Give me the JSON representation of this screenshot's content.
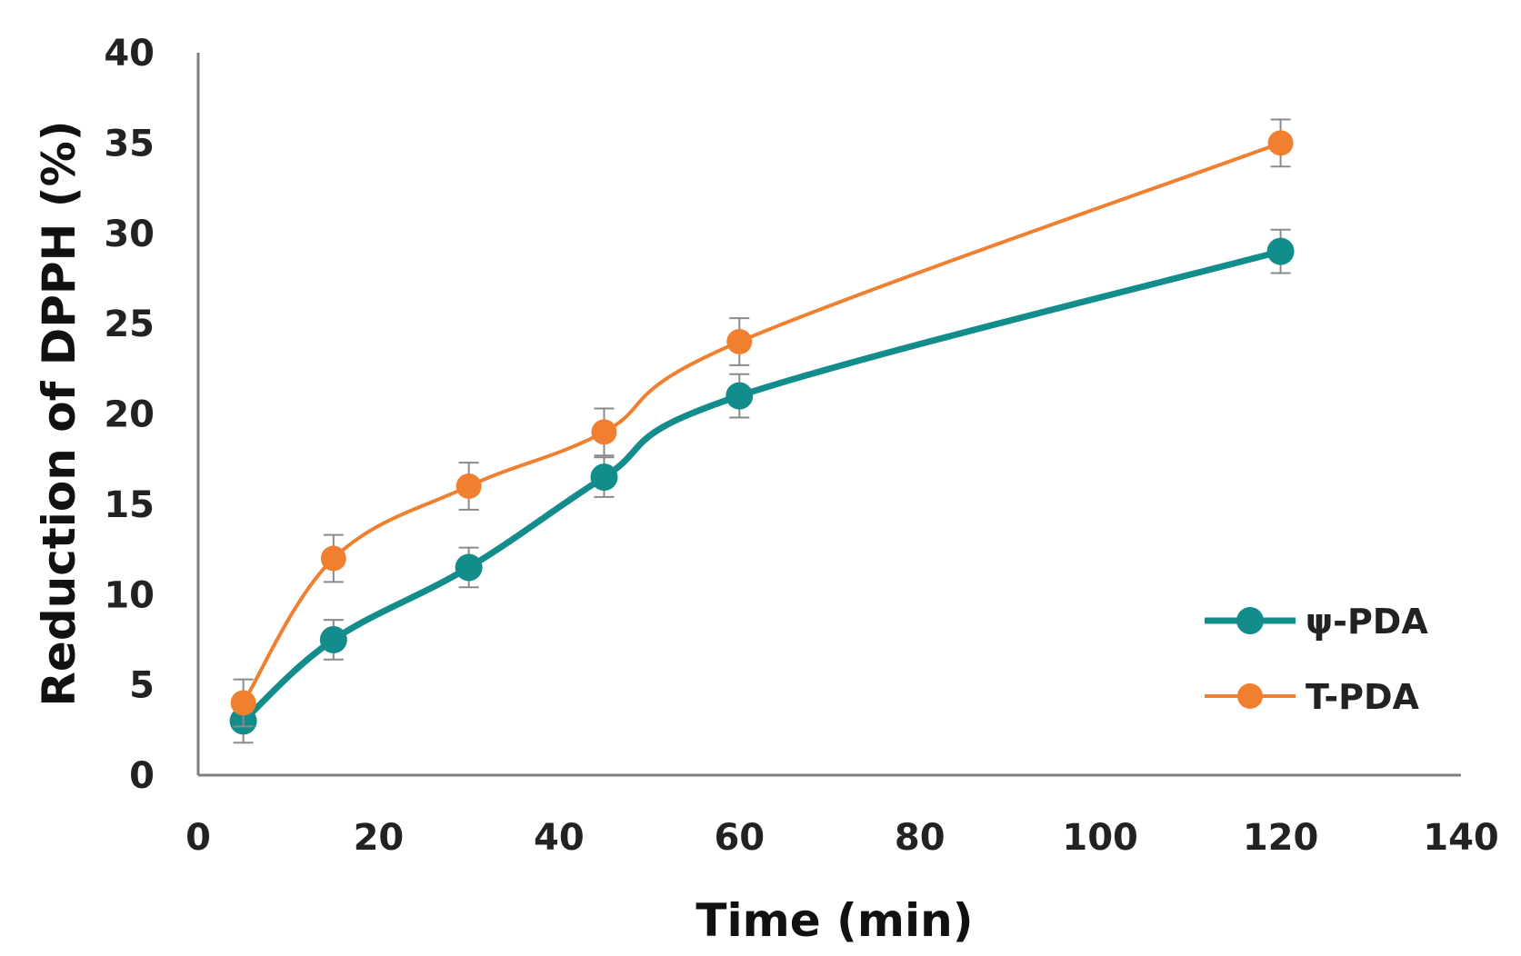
{
  "chart_data": {
    "type": "line",
    "title": "",
    "xlabel": "Time (min)",
    "ylabel": "Reduction of DPPH (%)",
    "xlim": [
      0,
      140
    ],
    "ylim": [
      0,
      40
    ],
    "xticks": [
      0,
      20,
      40,
      60,
      80,
      100,
      120,
      140
    ],
    "yticks": [
      0,
      5,
      10,
      15,
      20,
      25,
      30,
      35,
      40
    ],
    "grid": false,
    "legend_position": "right",
    "x": [
      5,
      15,
      30,
      45,
      60,
      120
    ],
    "series": [
      {
        "name": "ψ-PDA",
        "color": "#138c8c",
        "values": [
          3.0,
          7.5,
          11.5,
          16.5,
          21.0,
          29.0
        ],
        "errors": [
          1.2,
          1.1,
          1.1,
          1.1,
          1.2,
          1.2
        ]
      },
      {
        "name": "T-PDA",
        "color": "#f08030",
        "values": [
          4.0,
          12.0,
          16.0,
          19.0,
          24.0,
          35.0
        ],
        "errors": [
          1.3,
          1.3,
          1.3,
          1.3,
          1.3,
          1.3
        ]
      }
    ]
  }
}
